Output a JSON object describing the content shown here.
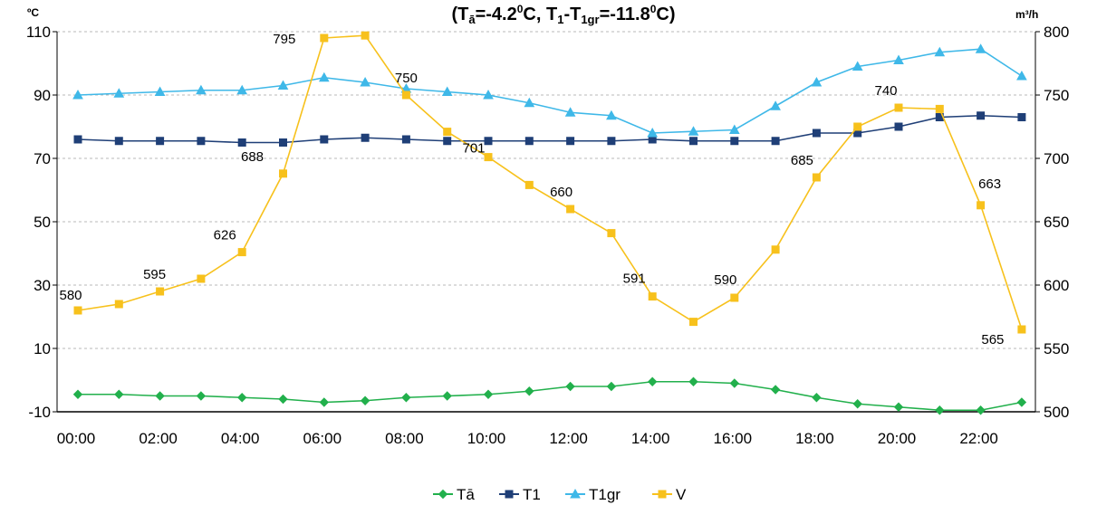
{
  "chart_data": {
    "type": "line",
    "title_parts": {
      "a1": "(T",
      "a1_sub": "ā",
      "a2": "=-4.2",
      "a2_sup": "0",
      "a3": "C, T",
      "a3_sub": "1",
      "a4": "-T",
      "a4_sub": "1gr",
      "a5": "=-11.8",
      "a5_sup": "0",
      "a6": "C)"
    },
    "y_left_unit": "ºC",
    "y_right_unit": "m³/h",
    "y_left_ticks": [
      "110",
      "90",
      "70",
      "50",
      "30",
      "10",
      "-10"
    ],
    "y_right_ticks": [
      "800",
      "750",
      "700",
      "650",
      "600",
      "550",
      "500"
    ],
    "ylim_left": [
      -10,
      110
    ],
    "ylim_right": [
      500,
      800
    ],
    "x_tick_labels": [
      "00:00",
      "02:00",
      "04:00",
      "06:00",
      "08:00",
      "10:00",
      "12:00",
      "14:00",
      "16:00",
      "18:00",
      "20:00",
      "22:00"
    ],
    "hours": [
      0,
      1,
      2,
      3,
      4,
      5,
      6,
      7,
      8,
      9,
      10,
      11,
      12,
      13,
      14,
      15,
      16,
      17,
      18,
      19,
      20,
      21,
      22,
      23
    ],
    "grid": "horizontal dashed",
    "legend_position": "bottom",
    "series": [
      {
        "name": "Tā",
        "axis": "left",
        "color": "#22b04c",
        "marker": "diamond",
        "values": [
          -4.5,
          -4.5,
          -5.0,
          -5.0,
          -5.5,
          -6.0,
          -7.0,
          -6.5,
          -5.5,
          -5.0,
          -4.5,
          -3.5,
          -2.0,
          -2.0,
          -0.5,
          -0.5,
          -1.0,
          -3.0,
          -5.5,
          -7.5,
          -8.5,
          -9.5,
          -9.5,
          -7.0
        ]
      },
      {
        "name": "T1",
        "axis": "left",
        "color": "#1f3f77",
        "marker": "square",
        "values": [
          76.0,
          75.5,
          75.5,
          75.5,
          75.0,
          75.0,
          76.0,
          76.5,
          76.0,
          75.5,
          75.5,
          75.5,
          75.5,
          75.5,
          76.0,
          75.5,
          75.5,
          75.5,
          78.0,
          78.0,
          80.0,
          83.0,
          83.5,
          83.0
        ]
      },
      {
        "name": "T1gr",
        "axis": "left",
        "color": "#3fb8e8",
        "marker": "triangle",
        "values": [
          90.0,
          90.5,
          91.0,
          91.5,
          91.5,
          93.0,
          95.5,
          94.0,
          92.0,
          91.0,
          90.0,
          87.5,
          84.5,
          83.5,
          78.0,
          78.5,
          79.0,
          86.5,
          94.0,
          99.0,
          101.0,
          103.5,
          104.5,
          96.0
        ]
      },
      {
        "name": "V",
        "axis": "right",
        "color": "#f7c11c",
        "marker": "square",
        "values": [
          580,
          585,
          595,
          605,
          626,
          688,
          795,
          797,
          750,
          721,
          701,
          679,
          660,
          641,
          591,
          571,
          590,
          628,
          685,
          725,
          740,
          739,
          663,
          565
        ],
        "data_labels": [
          {
            "i": 0,
            "text": "580"
          },
          {
            "i": 2,
            "text": "595"
          },
          {
            "i": 4,
            "text": "626"
          },
          {
            "i": 5,
            "text": "688"
          },
          {
            "i": 6,
            "text": "795"
          },
          {
            "i": 8,
            "text": "750"
          },
          {
            "i": 10,
            "text": "701"
          },
          {
            "i": 12,
            "text": "660"
          },
          {
            "i": 14,
            "text": "591"
          },
          {
            "i": 16,
            "text": "590"
          },
          {
            "i": 18,
            "text": "685"
          },
          {
            "i": 20,
            "text": "740"
          },
          {
            "i": 22,
            "text": "663"
          },
          {
            "i": 23,
            "text": "565"
          }
        ]
      }
    ]
  }
}
